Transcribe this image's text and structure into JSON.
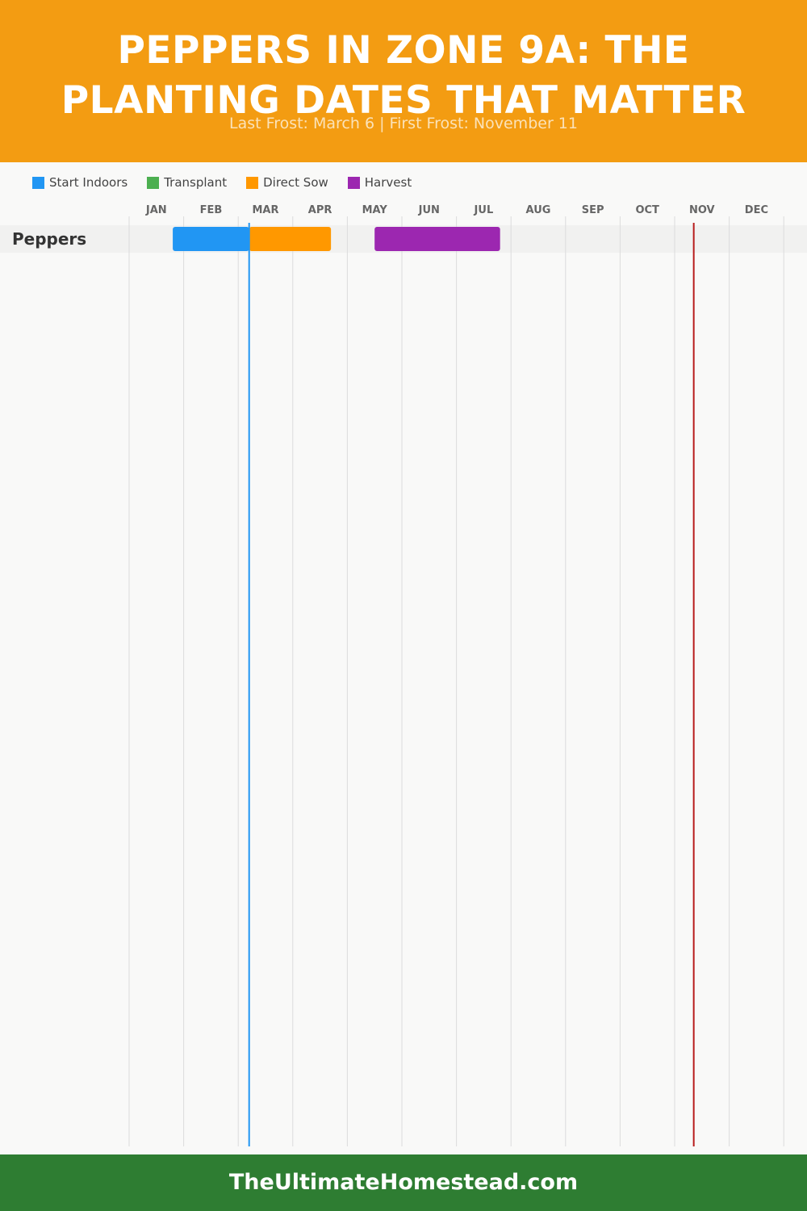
{
  "header": {
    "title_line1": "PEPPERS IN ZONE 9A: THE",
    "title_line2": "PLANTING DATES THAT MATTER",
    "subtitle": "Last Frost: March 6 | First Frost: November 11"
  },
  "legend": [
    {
      "label": "Start Indoors",
      "color": "#2196f3"
    },
    {
      "label": "Transplant",
      "color": "#4caf50"
    },
    {
      "label": "Direct Sow",
      "color": "#ff9800"
    },
    {
      "label": "Harvest",
      "color": "#9c27b0"
    }
  ],
  "chart_data": {
    "type": "gantt",
    "months": [
      "JAN",
      "FEB",
      "MAR",
      "APR",
      "MAY",
      "JUN",
      "JUL",
      "AUG",
      "SEP",
      "OCT",
      "NOV",
      "DEC"
    ],
    "rows": [
      {
        "label": "Peppers",
        "bars": [
          {
            "phase": "Start Indoors",
            "start": 1.8,
            "end": 3.2
          },
          {
            "phase": "Direct Sow",
            "start": 3.2,
            "end": 4.7
          },
          {
            "phase": "Harvest",
            "start": 5.5,
            "end": 7.8
          }
        ]
      }
    ],
    "markers": [
      {
        "name": "Last Frost",
        "month": 3.2,
        "color": "#2196f3"
      },
      {
        "name": "First Frost",
        "month": 11.35,
        "color": "#b71c1c"
      }
    ]
  },
  "footer": {
    "site": "TheUltimateHomestead.com"
  }
}
